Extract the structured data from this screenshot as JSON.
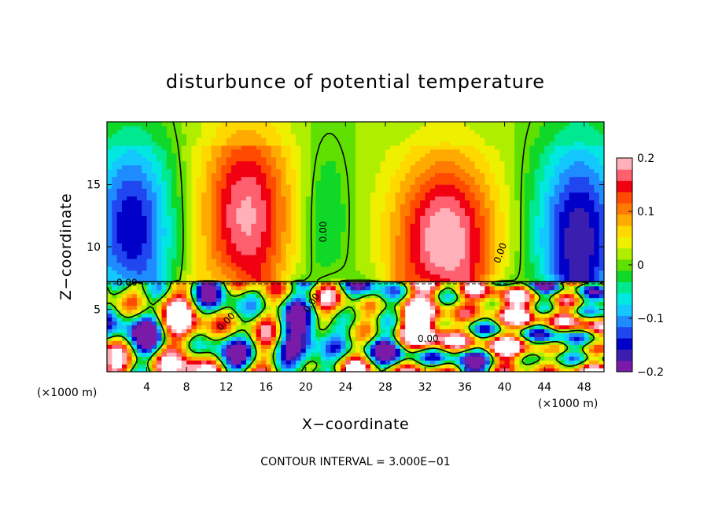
{
  "chart_data": {
    "type": "heatmap",
    "title": "disturbunce of potential temperature",
    "xlabel": "X−coordinate",
    "ylabel": "Z−coordinate",
    "x_unit": "(×1000 m)",
    "y_unit": "(×1000 m)",
    "xlim": [
      0,
      50
    ],
    "ylim": [
      0,
      20
    ],
    "x_ticks": [
      4,
      8,
      12,
      16,
      20,
      24,
      28,
      32,
      36,
      40,
      44,
      48
    ],
    "y_ticks": [
      5,
      10,
      15
    ],
    "contour_interval_text": "CONTOUR INTERVAL = 3.000E−01",
    "contour_labels": [
      {
        "text": "0.00",
        "x": 2.0,
        "y": 7.1,
        "rotate": 0
      },
      {
        "text": "0.00",
        "x": 21.8,
        "y": 11.2,
        "rotate": -90
      },
      {
        "text": "0.00",
        "x": 39.6,
        "y": 9.5,
        "rotate": -70
      },
      {
        "text": "0.00",
        "x": 20.6,
        "y": 5.5,
        "rotate": -55
      },
      {
        "text": "0.00",
        "x": 12.0,
        "y": 4.0,
        "rotate": -45
      },
      {
        "text": "0.00",
        "x": 32.3,
        "y": 2.6,
        "rotate": 0
      }
    ],
    "colorbar": {
      "min": -0.2,
      "max": 0.2,
      "tick_labels": [
        {
          "value": 0.2,
          "label": "0.2"
        },
        {
          "value": 0.1,
          "label": "0.1"
        },
        {
          "value": 0.0,
          "label": "0"
        },
        {
          "value": -0.1,
          "label": "−0.1"
        },
        {
          "value": -0.2,
          "label": "−0.2"
        }
      ],
      "colors": [
        "#7a1aa8",
        "#3a1eb0",
        "#0000c8",
        "#2046f0",
        "#1e8cff",
        "#14c8ff",
        "#00e8e0",
        "#00e890",
        "#10d828",
        "#60e000",
        "#b0ee00",
        "#eef000",
        "#ffd800",
        "#ffaa00",
        "#ff7a00",
        "#ff4a00",
        "#f00010",
        "#ff6070",
        "#ffb0b8"
      ]
    },
    "field_description": "Upper layer (z>7.2): negative bands near x 0-7 and x 42-50, positive maxima near x 14 and x 34 (≈0.15-0.18), near-zero around x 20-26. Lower layer (z<7.2): small-scale turbulent disturbances of mixed sign with white saturated regions."
  }
}
